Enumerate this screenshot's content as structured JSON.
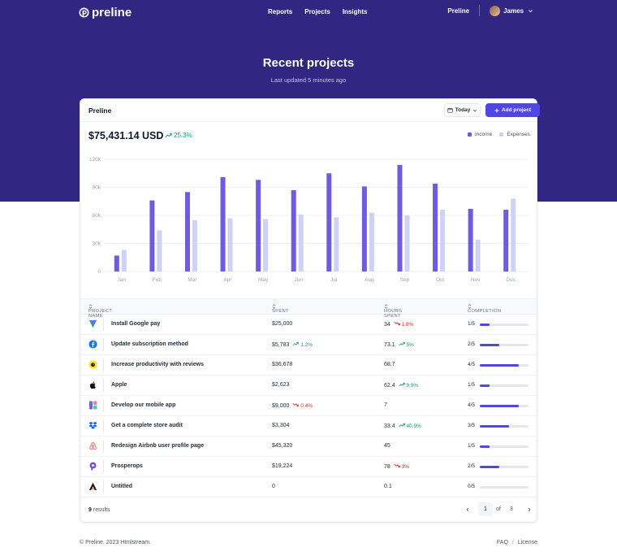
{
  "nav": {
    "logo": "preline",
    "links": [
      "Reports",
      "Projects",
      "Insights"
    ],
    "brand_link": "Preline",
    "user": "James"
  },
  "hero": {
    "title": "Recent projects",
    "subtitle": "Last updated 5 minutes ago"
  },
  "card": {
    "title": "Preline",
    "date_filter": "Today",
    "add_button": "Add project",
    "total": "$75,431.14 USD",
    "total_change": "25.3%",
    "legend": {
      "income": "Income",
      "expenses": "Expenses"
    }
  },
  "colors": {
    "hero": "#312783",
    "income": "#6e5ce0",
    "expenses": "#ced3f5",
    "accent": "#4f46e5",
    "up": "#0f9f6e",
    "down": "#dc2626"
  },
  "chart_data": {
    "type": "bar",
    "categories": [
      "Jan",
      "Feb",
      "Mar",
      "Apr",
      "May",
      "Jun",
      "Jul",
      "Aug",
      "Sep",
      "Oct",
      "Nov",
      "Dec"
    ],
    "series": [
      {
        "name": "Income",
        "values": [
          17000,
          76000,
          85000,
          101000,
          98000,
          87000,
          105000,
          91000,
          114000,
          94000,
          67000,
          66000
        ]
      },
      {
        "name": "Expenses",
        "values": [
          23000,
          44000,
          55000,
          57000,
          56000,
          61000,
          58000,
          63000,
          60000,
          66000,
          34000,
          78000
        ]
      }
    ],
    "ylim": [
      0,
      120000
    ],
    "yticks": [
      "0",
      "30k",
      "60k",
      "90k",
      "120k"
    ],
    "ytick_values": [
      0,
      30000,
      60000,
      90000,
      120000
    ],
    "grid": true,
    "legend": "top-right"
  },
  "table": {
    "headers": {
      "project": "PROJECT NAME",
      "spent": "SPENT",
      "hours": "HOURS SPENT",
      "completion": "COMPLETION"
    },
    "rows": [
      {
        "icon": "google-pay-icon",
        "name": "Install Google pay",
        "spent": "$25,000",
        "spent_change": "",
        "spent_dir": "",
        "hours": "34",
        "hours_change": "1.8%",
        "hours_dir": "down",
        "completion": "1/5",
        "completion_value": 0.2
      },
      {
        "icon": "facebook-icon",
        "name": "Update subscription method",
        "spent": "$5,783",
        "spent_change": "1.2%",
        "spent_dir": "up",
        "hours": "73.1",
        "hours_change": "5%",
        "hours_dir": "up",
        "completion": "2/5",
        "completion_value": 0.4
      },
      {
        "icon": "mailchimp-icon",
        "name": "Increase productivity with reviews",
        "spent": "$36,678",
        "spent_change": "",
        "spent_dir": "",
        "hours": "68.7",
        "hours_change": "",
        "hours_dir": "",
        "completion": "4/5",
        "completion_value": 0.8
      },
      {
        "icon": "apple-icon",
        "name": "Apple",
        "spent": "$2,623",
        "spent_change": "",
        "spent_dir": "",
        "hours": "62.4",
        "hours_change": "9.9%",
        "hours_dir": "up",
        "completion": "1/5",
        "completion_value": 0.2
      },
      {
        "icon": "mobile-app-icon",
        "name": "Develop our mobile app",
        "spent": "$9,000",
        "spent_change": "0.4%",
        "spent_dir": "down",
        "hours": "7",
        "hours_change": "",
        "hours_dir": "",
        "completion": "4/5",
        "completion_value": 0.8
      },
      {
        "icon": "dropbox-icon",
        "name": "Get a complete store audit",
        "spent": "$3,304",
        "spent_change": "",
        "spent_dir": "",
        "hours": "33.4",
        "hours_change": "40.9%",
        "hours_dir": "up",
        "completion": "3/5",
        "completion_value": 0.6
      },
      {
        "icon": "airbnb-icon",
        "name": "Redesign Airbnb user profile page",
        "spent": "$45,320",
        "spent_change": "",
        "spent_dir": "",
        "hours": "45",
        "hours_change": "",
        "hours_dir": "",
        "completion": "1/5",
        "completion_value": 0.2
      },
      {
        "icon": "prosperops-icon",
        "name": "Prosperops",
        "spent": "$19,224",
        "spent_change": "",
        "spent_dir": "",
        "hours": "78",
        "hours_change": "3%",
        "hours_dir": "down",
        "completion": "2/5",
        "completion_value": 0.4
      },
      {
        "icon": "untitled-icon",
        "name": "Untitled",
        "spent": "0",
        "spent_change": "",
        "spent_dir": "",
        "hours": "0.1",
        "hours_change": "",
        "hours_dir": "",
        "completion": "0/5",
        "completion_value": 0
      }
    ]
  },
  "pagination": {
    "results_count": "9",
    "results_label": "results",
    "current": "1",
    "of": "of",
    "total": "3"
  },
  "footer": {
    "copyright": "© Preline. 2023 Htmlstream.",
    "faq": "FAQ",
    "slash": "/",
    "license": "License"
  }
}
